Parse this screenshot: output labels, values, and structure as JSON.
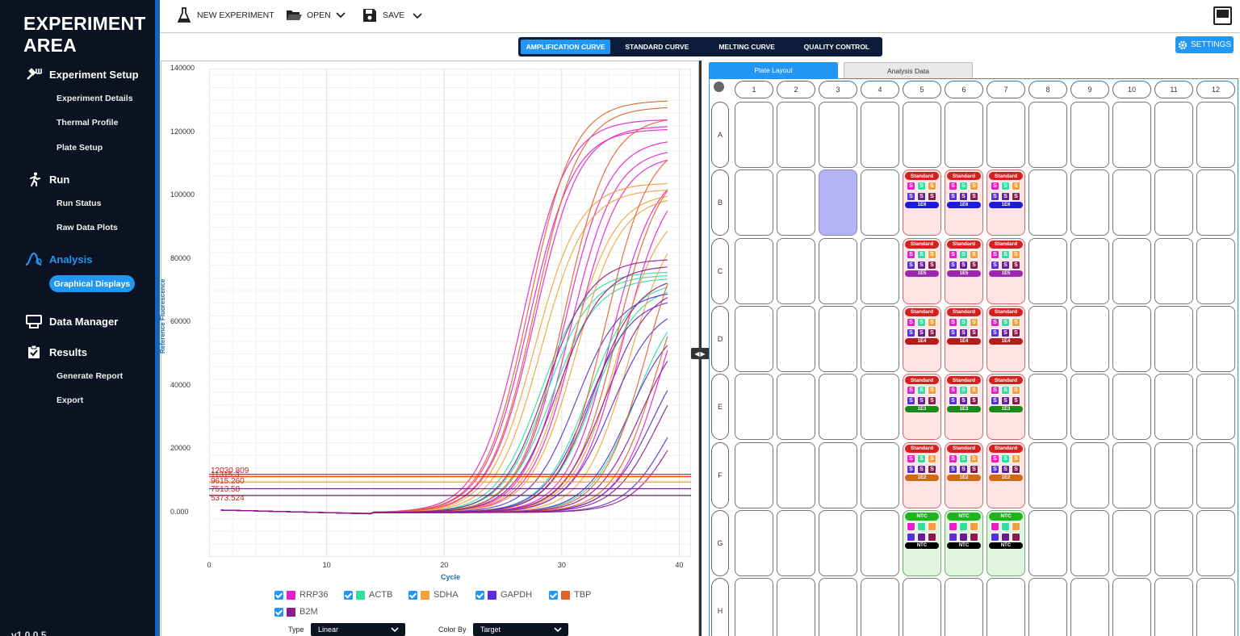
{
  "brand": {
    "line1": "EXPERIMENT",
    "line2": "AREA"
  },
  "sidebar": {
    "sections": [
      {
        "label": "Experiment Setup",
        "items": [
          "Experiment Details",
          "Thermal Profile",
          "Plate Setup"
        ]
      },
      {
        "label": "Run",
        "items": [
          "Run Status",
          "Raw Data Plots"
        ]
      },
      {
        "label": "Analysis",
        "items": [
          "Graphical Displays"
        ]
      },
      {
        "label": "Data Manager",
        "items": []
      },
      {
        "label": "Results",
        "items": [
          "Generate Report",
          "Export"
        ]
      }
    ],
    "version": "v1.0.0.5"
  },
  "toolbar": {
    "new_label": "NEW EXPERIMENT",
    "open_label": "OPEN",
    "save_label": "SAVE"
  },
  "tabs": [
    "AMPLIFICATION CURVE",
    "STANDARD CURVE",
    "MELTING CURVE",
    "QUALITY CONTROL"
  ],
  "settings_label": "SETTINGS",
  "chart_data": {
    "type": "line",
    "title": "",
    "xlabel": "Cycle",
    "ylabel": "Reference Fluorescence",
    "xlim": [
      0,
      41
    ],
    "ylim": [
      -14000,
      140000
    ],
    "x_ticks": [
      "0",
      "10",
      "20",
      "30",
      "40"
    ],
    "y_ticks": [
      "140000",
      "120000",
      "100000",
      "80000",
      "60000",
      "40000",
      "20000",
      "0.000"
    ],
    "grid": true,
    "thresholds": [
      {
        "value": 12030.809,
        "label": "12030.809",
        "color": "#c62828"
      },
      {
        "value": 11315.3,
        "label": "11315.3",
        "color": "#e64a19"
      },
      {
        "value": 9615.26,
        "label": "9615.260",
        "color": "#f2a13a"
      },
      {
        "value": 7513.58,
        "label": "7513.58",
        "color": "#7b1fa2"
      },
      {
        "value": 5373.524,
        "label": "5373.524",
        "color": "#6a1b4d"
      }
    ],
    "series": [
      {
        "name": "RRP36",
        "color": "#e91ec9",
        "curves": [
          {
            "ct": 24.5,
            "max": 124000
          },
          {
            "ct": 25.0,
            "max": 121000
          },
          {
            "ct": 25.5,
            "max": 122000
          },
          {
            "ct": 28.0,
            "max": 118000
          },
          {
            "ct": 28.5,
            "max": 115000
          },
          {
            "ct": 29.0,
            "max": 113000
          },
          {
            "ct": 32.0,
            "max": 110000
          },
          {
            "ct": 33.0,
            "max": 108000
          },
          {
            "ct": 36.5,
            "max": 95000
          }
        ]
      },
      {
        "name": "ACTB",
        "color": "#2ee09a",
        "curves": [
          {
            "ct": 26.0,
            "max": 76000
          },
          {
            "ct": 26.5,
            "max": 75000
          },
          {
            "ct": 27.0,
            "max": 74000
          },
          {
            "ct": 30.0,
            "max": 73000
          },
          {
            "ct": 30.5,
            "max": 72000
          },
          {
            "ct": 34.0,
            "max": 70000
          }
        ]
      },
      {
        "name": "SDHA",
        "color": "#f2a13a",
        "curves": [
          {
            "ct": 25.5,
            "max": 104000
          },
          {
            "ct": 26.0,
            "max": 102000
          },
          {
            "ct": 28.5,
            "max": 101000
          },
          {
            "ct": 29.0,
            "max": 100000
          },
          {
            "ct": 32.5,
            "max": 98000
          },
          {
            "ct": 33.5,
            "max": 96000
          }
        ]
      },
      {
        "name": "GAPDH",
        "color": "#5a2fd6",
        "curves": [
          {
            "ct": 29.0,
            "max": 70000
          },
          {
            "ct": 30.0,
            "max": 68000
          },
          {
            "ct": 32.0,
            "max": 66000
          },
          {
            "ct": 33.5,
            "max": 62000
          },
          {
            "ct": 35.5,
            "max": 58000
          },
          {
            "ct": 37.0,
            "max": 50000
          }
        ]
      },
      {
        "name": "TBP",
        "color": "#e0622a",
        "curves": [
          {
            "ct": 25.0,
            "max": 130000
          },
          {
            "ct": 25.5,
            "max": 128000
          },
          {
            "ct": 28.0,
            "max": 125000
          },
          {
            "ct": 31.5,
            "max": 118000
          },
          {
            "ct": 32.5,
            "max": 112000
          },
          {
            "ct": 35.0,
            "max": 100000
          },
          {
            "ct": 36.0,
            "max": 92000
          }
        ]
      },
      {
        "name": "B2M",
        "color": "#8e1a8e",
        "curves": [
          {
            "ct": 26.5,
            "max": 80000
          },
          {
            "ct": 27.5,
            "max": 78000
          },
          {
            "ct": 30.5,
            "max": 75000
          },
          {
            "ct": 31.5,
            "max": 72000
          },
          {
            "ct": 34.5,
            "max": 62000
          },
          {
            "ct": 36.0,
            "max": 56000
          },
          {
            "ct": 37.5,
            "max": 48000
          }
        ]
      }
    ]
  },
  "controls": {
    "type_label": "Type",
    "type_value": "Linear",
    "color_label": "Color By",
    "color_value": "Target"
  },
  "plate": {
    "tabs": [
      "Plate Layout",
      "Analysis Data"
    ],
    "columns": [
      "1",
      "2",
      "3",
      "4",
      "5",
      "6",
      "7",
      "8",
      "9",
      "10",
      "11",
      "12"
    ],
    "rows": [
      "A",
      "B",
      "C",
      "D",
      "E",
      "F",
      "G",
      "H"
    ],
    "selected_well": "B3",
    "standard_label": "Standard",
    "ntc_label": "NTC",
    "chip_letter": "S",
    "standard_rows": [
      {
        "row": "B",
        "conc": "1E6",
        "color": "#1a1ae0"
      },
      {
        "row": "C",
        "conc": "1E5",
        "color": "#9c27b0"
      },
      {
        "row": "D",
        "conc": "1E4",
        "color": "#b71c1c"
      },
      {
        "row": "E",
        "conc": "1E3",
        "color": "#1b8a1b"
      },
      {
        "row": "F",
        "conc": "1E2",
        "color": "#d06a10"
      }
    ],
    "ntc_row": "G",
    "filled_columns": [
      "5",
      "6",
      "7"
    ],
    "chip_colors": [
      "#e91ec9",
      "#2ee09a",
      "#f2a13a",
      "#5a2fd6",
      "#6a1b9a",
      "#8e1a4d"
    ]
  }
}
